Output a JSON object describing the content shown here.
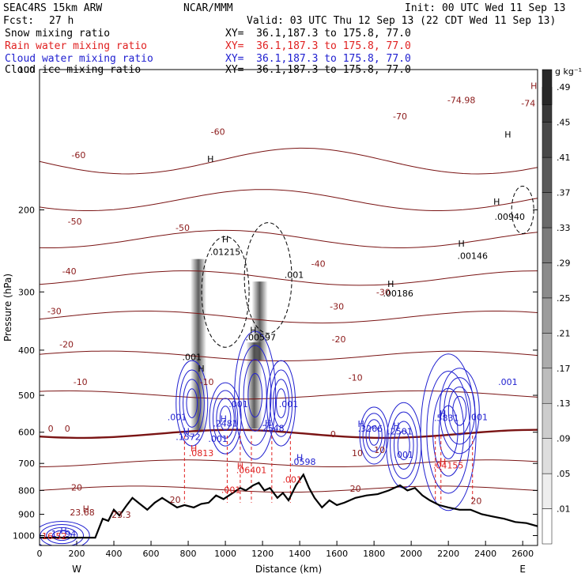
{
  "header": {
    "model": "SEAC4RS 15km ARW",
    "org": "NCAR/MMM",
    "init": "Init: 00 UTC Wed 11 Sep 13",
    "fcst_label": "Fcst:",
    "fcst_value": "27 h",
    "valid": "Valid: 03 UTC Thu 12 Sep 13 (22 CDT Wed 11 Sep 13)",
    "fields": [
      {
        "name": "Snow mixing ratio",
        "xy": "XY=  36.1,187.3 to 175.8, 77.0",
        "color": "#000000"
      },
      {
        "name": "Rain water mixing ratio",
        "xy": "XY=  36.1,187.3 to 175.8, 77.0",
        "color": "#e02020"
      },
      {
        "name": "Cloud water mixing ratio",
        "xy": "XY=  36.1,187.3 to 175.8, 77.0",
        "color": "#2020d0"
      },
      {
        "name": "Cloud ice mixing ratio",
        "xy": "XY=  36.1,187.3 to 175.8, 77.0",
        "color": "#000000"
      }
    ]
  },
  "chart_data": {
    "type": "heatmap",
    "xlabel": "Distance (km)",
    "ylabel": "Pressure (hPa)",
    "xlim": [
      0,
      2680
    ],
    "ylim": [
      1050,
      100
    ],
    "x_ticks": [
      "0",
      "200",
      "400",
      "600",
      "800",
      "1000",
      "1200",
      "1400",
      "1600",
      "1800",
      "2000",
      "2200",
      "2400",
      "2600"
    ],
    "y_ticks": [
      "100",
      "200",
      "300",
      "400",
      "500",
      "600",
      "700",
      "800",
      "900",
      "1000"
    ],
    "x_end_labels": {
      "left": "W",
      "right": "E"
    },
    "colorbar": {
      "unit": "g kg⁻¹",
      "ticks": [
        ".01",
        ".05",
        ".09",
        ".13",
        ".17",
        ".21",
        ".25",
        ".29",
        ".33",
        ".37",
        ".41",
        ".45",
        ".49"
      ]
    },
    "temperature_isotherms_C": [
      -70,
      -60,
      -50,
      -40,
      -30,
      -20,
      -10,
      0,
      10,
      20
    ],
    "freezing_level_hPa": 605,
    "terrain": [
      {
        "x": 0,
        "p": 1010
      },
      {
        "x": 300,
        "p": 1010
      },
      {
        "x": 340,
        "p": 920
      },
      {
        "x": 370,
        "p": 930
      },
      {
        "x": 400,
        "p": 880
      },
      {
        "x": 430,
        "p": 905
      },
      {
        "x": 470,
        "p": 860
      },
      {
        "x": 500,
        "p": 830
      },
      {
        "x": 540,
        "p": 855
      },
      {
        "x": 580,
        "p": 880
      },
      {
        "x": 620,
        "p": 850
      },
      {
        "x": 660,
        "p": 830
      },
      {
        "x": 700,
        "p": 850
      },
      {
        "x": 740,
        "p": 870
      },
      {
        "x": 780,
        "p": 860
      },
      {
        "x": 830,
        "p": 870
      },
      {
        "x": 870,
        "p": 855
      },
      {
        "x": 910,
        "p": 850
      },
      {
        "x": 950,
        "p": 820
      },
      {
        "x": 990,
        "p": 835
      },
      {
        "x": 1040,
        "p": 810
      },
      {
        "x": 1080,
        "p": 790
      },
      {
        "x": 1110,
        "p": 800
      },
      {
        "x": 1150,
        "p": 780
      },
      {
        "x": 1180,
        "p": 770
      },
      {
        "x": 1210,
        "p": 800
      },
      {
        "x": 1240,
        "p": 790
      },
      {
        "x": 1280,
        "p": 830
      },
      {
        "x": 1310,
        "p": 810
      },
      {
        "x": 1340,
        "p": 840
      },
      {
        "x": 1380,
        "p": 780
      },
      {
        "x": 1420,
        "p": 740
      },
      {
        "x": 1450,
        "p": 790
      },
      {
        "x": 1480,
        "p": 830
      },
      {
        "x": 1520,
        "p": 870
      },
      {
        "x": 1560,
        "p": 840
      },
      {
        "x": 1600,
        "p": 860
      },
      {
        "x": 1640,
        "p": 850
      },
      {
        "x": 1700,
        "p": 830
      },
      {
        "x": 1760,
        "p": 820
      },
      {
        "x": 1820,
        "p": 815
      },
      {
        "x": 1880,
        "p": 800
      },
      {
        "x": 1940,
        "p": 780
      },
      {
        "x": 1980,
        "p": 800
      },
      {
        "x": 2020,
        "p": 790
      },
      {
        "x": 2060,
        "p": 820
      },
      {
        "x": 2100,
        "p": 840
      },
      {
        "x": 2150,
        "p": 860
      },
      {
        "x": 2200,
        "p": 870
      },
      {
        "x": 2260,
        "p": 880
      },
      {
        "x": 2320,
        "p": 880
      },
      {
        "x": 2380,
        "p": 900
      },
      {
        "x": 2440,
        "p": 910
      },
      {
        "x": 2500,
        "p": 920
      },
      {
        "x": 2560,
        "p": 935
      },
      {
        "x": 2620,
        "p": 940
      },
      {
        "x": 2680,
        "p": 955
      }
    ],
    "snow_columns": [
      {
        "x": 855,
        "p_top": 255,
        "p_bottom": 600
      },
      {
        "x": 1155,
        "p_top": 385,
        "p_bottom": 590
      },
      {
        "x": 1185,
        "p_top": 285,
        "p_bottom": 420
      }
    ],
    "annotations": [
      {
        "text": "-70",
        "x": 1940,
        "p": 128,
        "color": "#8b1a1a"
      },
      {
        "text": "-74.98",
        "x": 2270,
        "p": 118,
        "color": "#8b1a1a"
      },
      {
        "text": "-74",
        "x": 2630,
        "p": 120,
        "color": "#8b1a1a"
      },
      {
        "text": "-60",
        "x": 210,
        "p": 155,
        "color": "#8b1a1a"
      },
      {
        "text": "-60",
        "x": 960,
        "p": 138,
        "color": "#8b1a1a"
      },
      {
        "text": "-50",
        "x": 190,
        "p": 215,
        "color": "#8b1a1a"
      },
      {
        "text": "-50",
        "x": 770,
        "p": 222,
        "color": "#8b1a1a"
      },
      {
        "text": "-40",
        "x": 160,
        "p": 275,
        "color": "#8b1a1a"
      },
      {
        "text": "-40",
        "x": 1500,
        "p": 265,
        "color": "#8b1a1a"
      },
      {
        "text": "-30",
        "x": 80,
        "p": 335,
        "color": "#8b1a1a"
      },
      {
        "text": "-30",
        "x": 1600,
        "p": 327,
        "color": "#8b1a1a"
      },
      {
        "text": "-30",
        "x": 1850,
        "p": 305,
        "color": "#8b1a1a"
      },
      {
        "text": "-20",
        "x": 145,
        "p": 395,
        "color": "#8b1a1a"
      },
      {
        "text": "-20",
        "x": 1610,
        "p": 385,
        "color": "#8b1a1a"
      },
      {
        "text": "-10",
        "x": 220,
        "p": 475,
        "color": "#8b1a1a"
      },
      {
        "text": "-10",
        "x": 900,
        "p": 475,
        "color": "#8b1a1a"
      },
      {
        "text": "-10",
        "x": 1700,
        "p": 465,
        "color": "#8b1a1a"
      },
      {
        "text": "0",
        "x": 60,
        "p": 598,
        "color": "#8b1a1a"
      },
      {
        "text": "0",
        "x": 150,
        "p": 598,
        "color": "#8b1a1a"
      },
      {
        "text": "0",
        "x": 1580,
        "p": 615,
        "color": "#8b1a1a"
      },
      {
        "text": "10",
        "x": 1710,
        "p": 675,
        "color": "#8b1a1a"
      },
      {
        "text": "10",
        "x": 1830,
        "p": 665,
        "color": "#8b1a1a"
      },
      {
        "text": "20",
        "x": 200,
        "p": 800,
        "color": "#8b1a1a"
      },
      {
        "text": "20",
        "x": 730,
        "p": 850,
        "color": "#8b1a1a"
      },
      {
        "text": "20",
        "x": 1700,
        "p": 805,
        "color": "#8b1a1a"
      },
      {
        "text": "20",
        "x": 2350,
        "p": 855,
        "color": "#8b1a1a"
      },
      {
        "text": "H",
        "x": 2660,
        "p": 110,
        "color": "#8b1a1a"
      },
      {
        "text": "H",
        "x": 2520,
        "p": 140,
        "color": "#000000"
      },
      {
        "text": "H",
        "x": 920,
        "p": 158,
        "color": "#000000"
      },
      {
        "text": "H",
        "x": 250,
        "p": 890,
        "color": "#8b1a1a"
      },
      {
        "text": "23.68",
        "x": 230,
        "p": 905,
        "color": "#8b1a1a"
      },
      {
        "text": "23.3",
        "x": 440,
        "p": 915,
        "color": "#8b1a1a"
      },
      {
        "text": "H",
        "x": 2460,
        "p": 195,
        "color": "#000000"
      },
      {
        "text": ".00940",
        "x": 2530,
        "p": 210,
        "color": "#000000"
      },
      {
        "text": "H",
        "x": 2270,
        "p": 240,
        "color": "#000000"
      },
      {
        "text": ".00146",
        "x": 2330,
        "p": 255,
        "color": "#000000"
      },
      {
        "text": "H",
        "x": 1890,
        "p": 293,
        "color": "#000000"
      },
      {
        "text": ".00186",
        "x": 1930,
        "p": 307,
        "color": "#000000"
      },
      {
        "text": "H",
        "x": 1000,
        "p": 235,
        "color": "#000000"
      },
      {
        "text": ".01215",
        "x": 1000,
        "p": 250,
        "color": "#000000"
      },
      {
        "text": ".001",
        "x": 1370,
        "p": 280,
        "color": "#000000"
      },
      {
        "text": "H",
        "x": 1150,
        "p": 368,
        "color": "#000000"
      },
      {
        "text": ".00597",
        "x": 1190,
        "p": 381,
        "color": "#000000"
      },
      {
        "text": ".001",
        "x": 820,
        "p": 420,
        "color": "#000000"
      },
      {
        "text": "H",
        "x": 870,
        "p": 445,
        "color": "#000000"
      },
      {
        "text": ".001",
        "x": 2520,
        "p": 475,
        "color": "#2020d0"
      },
      {
        "text": ".001",
        "x": 1070,
        "p": 530,
        "color": "#2020d0"
      },
      {
        "text": ".001",
        "x": 1340,
        "p": 530,
        "color": "#2020d0"
      },
      {
        "text": ".001",
        "x": 740,
        "p": 565,
        "color": "#2020d0"
      },
      {
        "text": "H",
        "x": 990,
        "p": 570,
        "color": "#2020d0"
      },
      {
        "text": ".2481",
        "x": 1000,
        "p": 583,
        "color": "#2020d0"
      },
      {
        "text": "H",
        "x": 790,
        "p": 607,
        "color": "#2020d0"
      },
      {
        "text": ".1572",
        "x": 800,
        "p": 623,
        "color": "#2020d0"
      },
      {
        "text": ".001",
        "x": 960,
        "p": 630,
        "color": "#2020d0"
      },
      {
        "text": "H",
        "x": 1230,
        "p": 582,
        "color": "#2020d0"
      },
      {
        "text": ".2548",
        "x": 1250,
        "p": 597,
        "color": "#2020d0"
      },
      {
        "text": "H",
        "x": 1730,
        "p": 585,
        "color": "#2020d0"
      },
      {
        "text": ".3266",
        "x": 1780,
        "p": 598,
        "color": "#2020d0"
      },
      {
        "text": "H",
        "x": 1920,
        "p": 590,
        "color": "#2020d0"
      },
      {
        "text": ".2501",
        "x": 1940,
        "p": 607,
        "color": "#2020d0"
      },
      {
        "text": "H",
        "x": 2170,
        "p": 555,
        "color": "#2020d0"
      },
      {
        "text": ".5831",
        "x": 2190,
        "p": 568,
        "color": "#2020d0"
      },
      {
        "text": ".001",
        "x": 2360,
        "p": 565,
        "color": "#2020d0"
      },
      {
        "text": ".001",
        "x": 1960,
        "p": 680,
        "color": "#2020d0"
      },
      {
        "text": "H",
        "x": 830,
        "p": 660,
        "color": "#e02020"
      },
      {
        "text": ".0813",
        "x": 870,
        "p": 675,
        "color": "#e02020"
      },
      {
        "text": "H",
        "x": 1080,
        "p": 720,
        "color": "#e02020"
      },
      {
        "text": ".06401",
        "x": 1140,
        "p": 735,
        "color": "#e02020"
      },
      {
        "text": "H",
        "x": 2170,
        "p": 705,
        "color": "#e02020"
      },
      {
        "text": ".04155",
        "x": 2200,
        "p": 718,
        "color": "#e02020"
      },
      {
        "text": "H",
        "x": 1400,
        "p": 690,
        "color": "#2020d0"
      },
      {
        "text": ".0598",
        "x": 1420,
        "p": 705,
        "color": "#2020d0"
      },
      {
        "text": ".001",
        "x": 1360,
        "p": 770,
        "color": "#e02020"
      },
      {
        "text": ".001",
        "x": 1030,
        "p": 810,
        "color": "#e02020"
      },
      {
        "text": "H",
        "x": 130,
        "p": 990,
        "color": "#2020d0"
      },
      {
        "text": "17.94",
        "x": 130,
        "p": 1005,
        "color": "#2020d0"
      },
      {
        "text": "16.52",
        "x": 80,
        "p": 1018,
        "color": "#e02020"
      }
    ]
  }
}
